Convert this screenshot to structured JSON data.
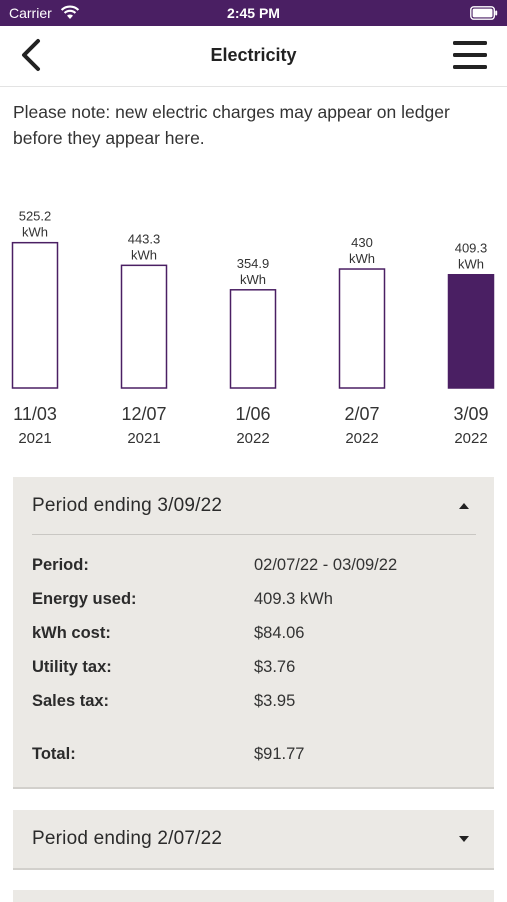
{
  "status_bar": {
    "carrier": "Carrier",
    "time": "2:45 PM"
  },
  "nav": {
    "title": "Electricity"
  },
  "notice": "Please note: new electric charges may appear on ledger before they appear here.",
  "colors": {
    "brand": "#4a1f63",
    "card_bg": "#ebe9e5"
  },
  "chart_data": {
    "type": "bar",
    "categories": [
      "11/03 2021",
      "12/07 2021",
      "1/06 2022",
      "2/07 2022",
      "3/09 2022"
    ],
    "category_month": [
      "11/03",
      "12/07",
      "1/06",
      "2/07",
      "3/09"
    ],
    "category_year": [
      "2021",
      "2021",
      "2022",
      "2022",
      "2022"
    ],
    "values": [
      525.2,
      443.3,
      354.9,
      430,
      409.3
    ],
    "value_labels": [
      "525.2",
      "443.3",
      "354.9",
      "430",
      "409.3"
    ],
    "unit": "kWh",
    "highlighted_index": 4,
    "title": "",
    "xlabel": "",
    "ylabel": ""
  },
  "periods": [
    {
      "title": "Period ending 3/09/22",
      "expanded": true,
      "rows": [
        {
          "label": "Period:",
          "value": "02/07/22 - 03/09/22"
        },
        {
          "label": "Energy used:",
          "value": "409.3 kWh"
        },
        {
          "label": "kWh cost:",
          "value": "$84.06"
        },
        {
          "label": "Utility tax:",
          "value": "$3.76"
        },
        {
          "label": "Sales tax:",
          "value": "$3.95"
        }
      ],
      "total": {
        "label": "Total:",
        "value": "$91.77"
      }
    },
    {
      "title": "Period ending 2/07/22",
      "expanded": false
    }
  ]
}
